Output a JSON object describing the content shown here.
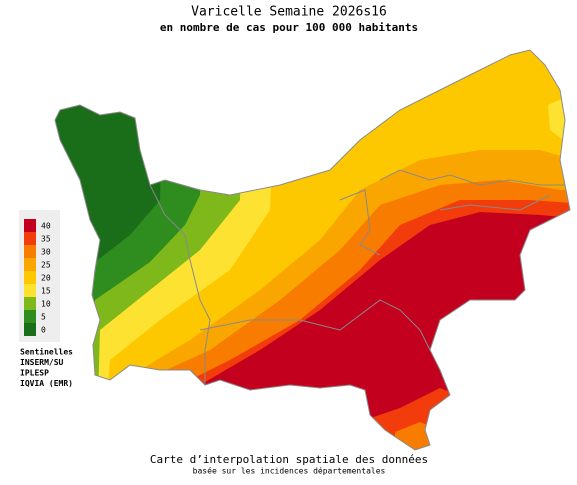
{
  "header": {
    "title": "Varicelle Semaine 2026s16",
    "subtitle": "en nombre de cas pour 100 000 habitants"
  },
  "legend": {
    "items": [
      {
        "label": "40",
        "color": "#c4001f"
      },
      {
        "label": "35",
        "color": "#f23c0c"
      },
      {
        "label": "30",
        "color": "#f77c00"
      },
      {
        "label": "25",
        "color": "#faa600"
      },
      {
        "label": "20",
        "color": "#fdc800"
      },
      {
        "label": "15",
        "color": "#fde232"
      },
      {
        "label": "10",
        "color": "#7fb81b"
      },
      {
        "label": "5",
        "color": "#2f8c1f"
      },
      {
        "label": "0",
        "color": "#1b6e19"
      }
    ]
  },
  "sources": [
    "Sentinelles",
    "INSERM/SU",
    "IPLESP",
    "IQVIA (EMR)"
  ],
  "footer": {
    "line1": "Carte d’interpolation spatiale des données",
    "line2": "basée sur les incidences départementales"
  }
}
